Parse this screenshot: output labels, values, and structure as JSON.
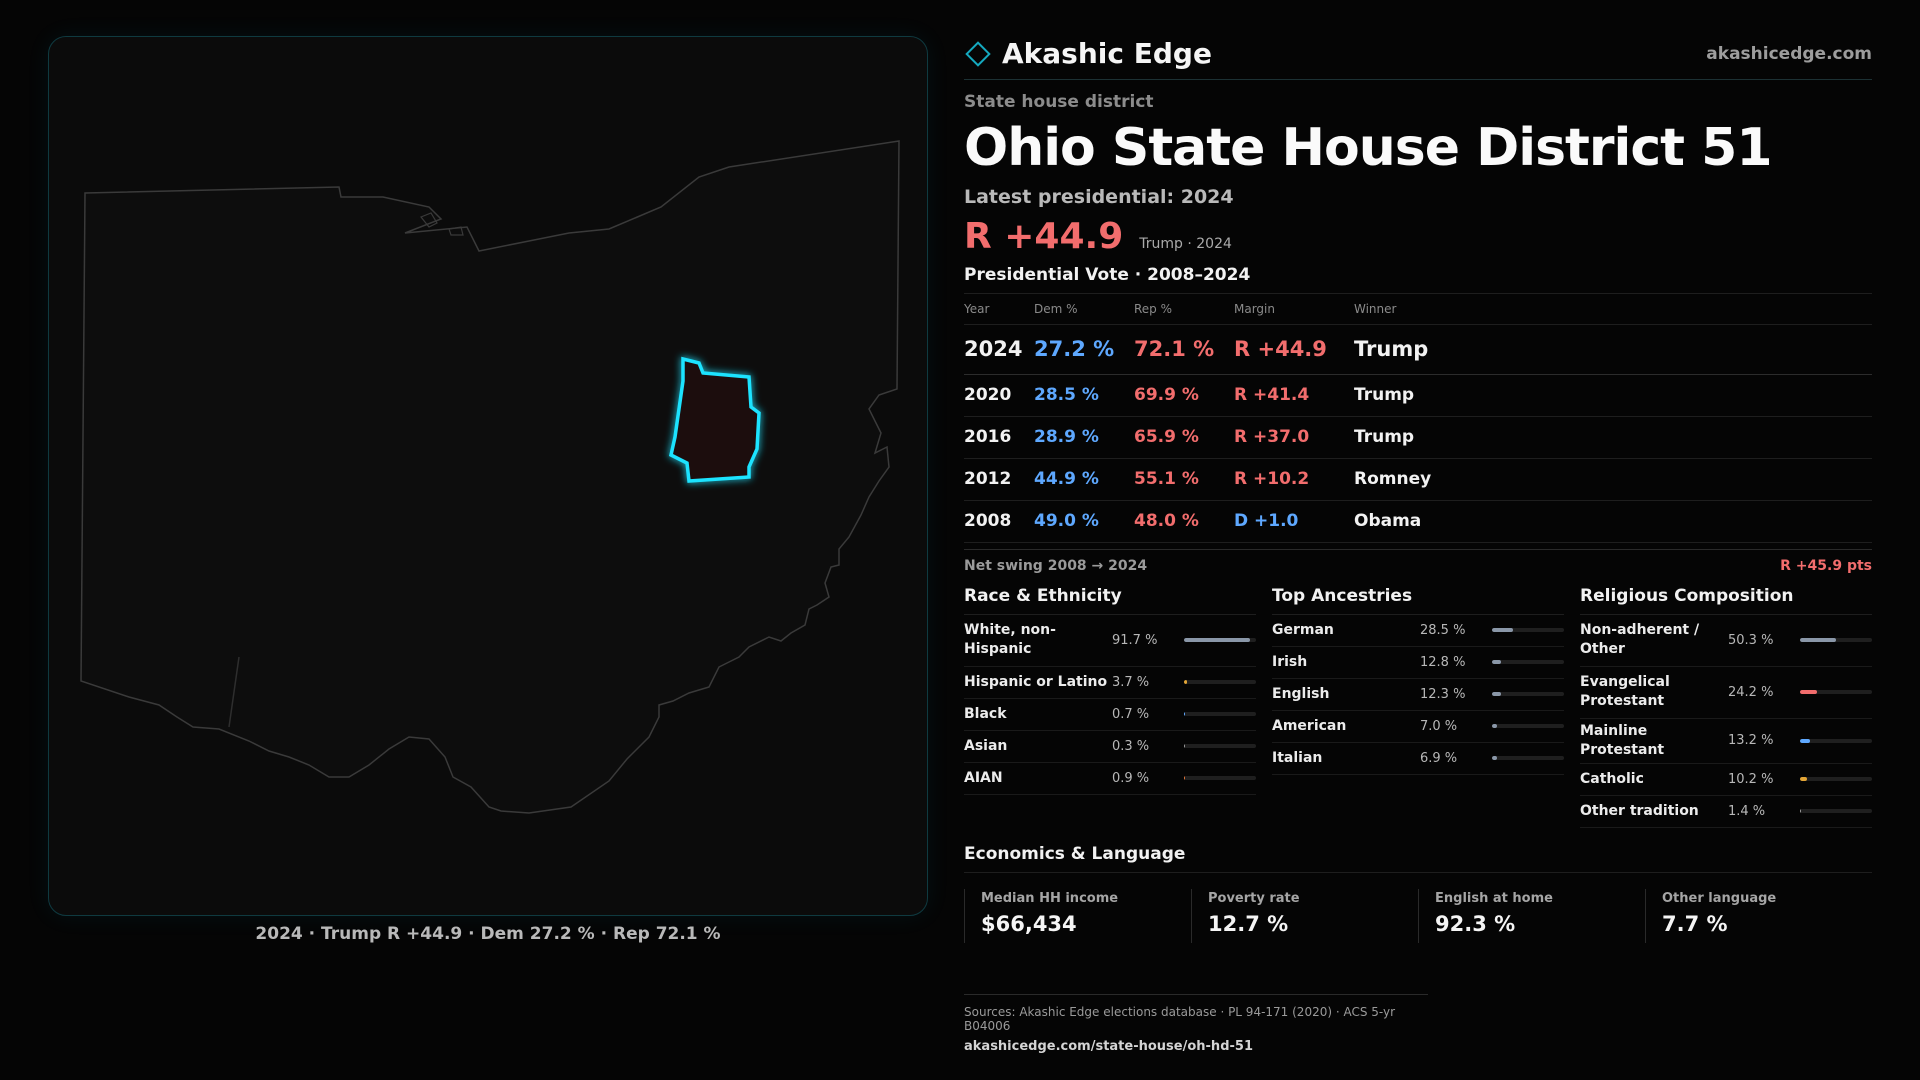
{
  "brand": {
    "name": "Akashic Edge",
    "url": "akashicedge.com",
    "logo_icon": "diamond-outline-icon",
    "accent": "#15a9bf"
  },
  "header": {
    "kicker": "State house district",
    "title": "Ohio State House District 51",
    "latest": "Latest presidential: 2024",
    "margin": "R +44.9",
    "margin_sub": "Trump · 2024"
  },
  "presidential": {
    "title": "Presidential Vote · 2008–2024",
    "columns": [
      "Year",
      "Dem %",
      "Rep %",
      "Margin",
      "Winner"
    ],
    "rows": [
      {
        "year": "2024",
        "dem": "27.2 %",
        "rep": "72.1 %",
        "margin": "R +44.9",
        "winner": "Trump"
      },
      {
        "year": "2020",
        "dem": "28.5 %",
        "rep": "69.9 %",
        "margin": "R +41.4",
        "winner": "Trump"
      },
      {
        "year": "2016",
        "dem": "28.9 %",
        "rep": "65.9 %",
        "margin": "R +37.0",
        "winner": "Trump"
      },
      {
        "year": "2012",
        "dem": "44.9 %",
        "rep": "55.1 %",
        "margin": "R +10.2",
        "winner": "Romney"
      },
      {
        "year": "2008",
        "dem": "49.0 %",
        "rep": "48.0 %",
        "margin": "D +1.0",
        "winner": "Obama"
      }
    ],
    "swing_label": "Net swing 2008 → 2024",
    "swing_value": "R +45.9 pts"
  },
  "race": {
    "title": "Race & Ethnicity",
    "items": [
      {
        "label": "White, non-Hispanic",
        "value": "91.7 %",
        "pct": 91.7,
        "color": "#8a97a8"
      },
      {
        "label": "Hispanic or Latino",
        "value": "3.7 %",
        "pct": 3.7,
        "color": "#e3a536"
      },
      {
        "label": "Black",
        "value": "0.7 %",
        "pct": 0.7,
        "color": "#5ea8ff"
      },
      {
        "label": "Asian",
        "value": "0.3 %",
        "pct": 0.3,
        "color": "#9b9b9b"
      },
      {
        "label": "AIAN",
        "value": "0.9 %",
        "pct": 0.9,
        "color": "#e3763a"
      }
    ]
  },
  "ancestry": {
    "title": "Top Ancestries",
    "items": [
      {
        "label": "German",
        "value": "28.5 %",
        "pct": 28.5,
        "color": "#8a97a8"
      },
      {
        "label": "Irish",
        "value": "12.8 %",
        "pct": 12.8,
        "color": "#8a97a8"
      },
      {
        "label": "English",
        "value": "12.3 %",
        "pct": 12.3,
        "color": "#8a97a8"
      },
      {
        "label": "American",
        "value": "7.0 %",
        "pct": 7.0,
        "color": "#8a97a8"
      },
      {
        "label": "Italian",
        "value": "6.9 %",
        "pct": 6.9,
        "color": "#8a97a8"
      }
    ]
  },
  "religion": {
    "title": "Religious Composition",
    "items": [
      {
        "label": "Non-adherent / Other",
        "value": "50.3 %",
        "pct": 50.3,
        "color": "#8a97a8"
      },
      {
        "label": "Evangelical Protestant",
        "value": "24.2 %",
        "pct": 24.2,
        "color": "#f26d6d"
      },
      {
        "label": "Mainline Protestant",
        "value": "13.2 %",
        "pct": 13.2,
        "color": "#5ea8ff"
      },
      {
        "label": "Catholic",
        "value": "10.2 %",
        "pct": 10.2,
        "color": "#e3a536"
      },
      {
        "label": "Other tradition",
        "value": "1.4 %",
        "pct": 1.4,
        "color": "#9b9b9b"
      }
    ]
  },
  "economics": {
    "title": "Economics & Language",
    "items": [
      {
        "label": "Median HH income",
        "value": "$66,434"
      },
      {
        "label": "Poverty rate",
        "value": "12.7 %"
      },
      {
        "label": "English at home",
        "value": "92.3 %"
      },
      {
        "label": "Other language",
        "value": "7.7 %"
      }
    ]
  },
  "map": {
    "caption": "2024 · Trump R +44.9 · Dem 27.2 % · Rep 72.1 %",
    "district_color": "#1ee3ff",
    "state_outline_color": "#3a3a3a"
  },
  "sources": {
    "line": "Sources: Akashic Edge elections database · PL 94-171 (2020) · ACS 5-yr B04006",
    "url": "akashicedge.com/state-house/oh-hd-51"
  }
}
